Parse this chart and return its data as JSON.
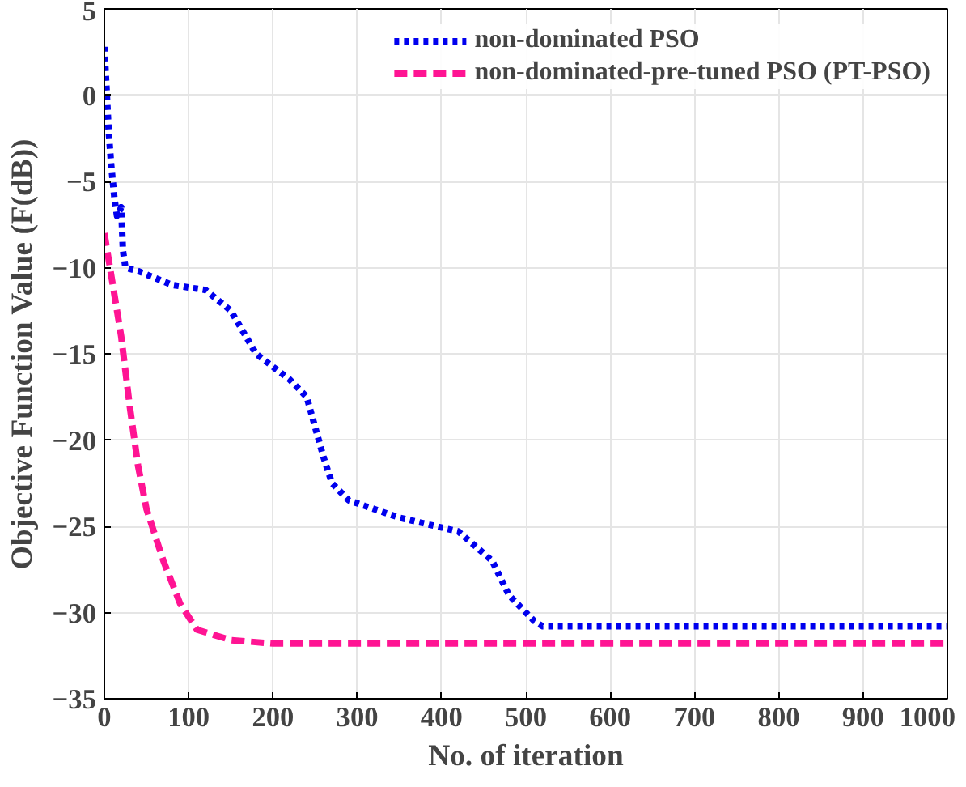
{
  "chart_data": {
    "type": "line",
    "xlabel": "No. of iteration",
    "ylabel": "Objective Function Value (F(dB))",
    "xlim": [
      0,
      1000
    ],
    "ylim": [
      -35,
      5
    ],
    "xticks": [
      0,
      100,
      200,
      300,
      400,
      500,
      600,
      700,
      800,
      900,
      1000
    ],
    "yticks": [
      -35,
      -30,
      -25,
      -20,
      -15,
      -10,
      -5,
      0,
      5
    ],
    "grid": true,
    "legend": "top right",
    "marker": "none",
    "series": [
      {
        "name": "non-dominated PSO",
        "color": "#0000ee",
        "line_style": "dotted",
        "x": [
          0,
          3,
          5,
          8,
          12,
          15,
          20,
          22,
          25,
          40,
          80,
          120,
          150,
          180,
          220,
          240,
          260,
          270,
          290,
          350,
          420,
          460,
          480,
          510,
          520,
          1000
        ],
        "values": [
          2.8,
          0,
          -2,
          -4,
          -6,
          -7,
          -6.5,
          -9,
          -10,
          -10.2,
          -11,
          -11.3,
          -12.5,
          -15,
          -16.5,
          -17.5,
          -21,
          -22.5,
          -23.5,
          -24.5,
          -25.3,
          -27,
          -29,
          -30.5,
          -30.8,
          -30.8
        ]
      },
      {
        "name": "non-dominated-pre-tuned PSO (PT-PSO)",
        "color": "#ff1493",
        "line_style": "dashed",
        "x": [
          0,
          5,
          10,
          20,
          30,
          40,
          50,
          70,
          90,
          110,
          150,
          200,
          1000
        ],
        "values": [
          -8,
          -9.5,
          -11,
          -14,
          -18,
          -21.5,
          -24,
          -27,
          -29.5,
          -31,
          -31.6,
          -31.8,
          -31.8
        ]
      }
    ]
  }
}
